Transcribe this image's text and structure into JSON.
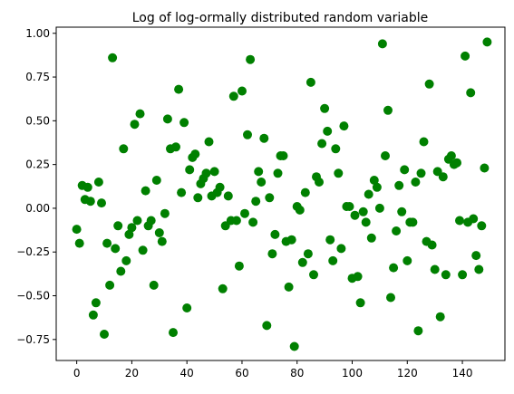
{
  "chart_data": {
    "type": "scatter",
    "title": "Log of log-ormally distributed random variable",
    "xlabel": "",
    "ylabel": "",
    "xlim": [
      -7.45,
      155.45
    ],
    "ylim": [
      -0.87,
      1.035
    ],
    "x_ticks": [
      0,
      20,
      40,
      60,
      80,
      100,
      120,
      140
    ],
    "y_ticks": [
      -0.75,
      -0.5,
      -0.25,
      0.0,
      0.25,
      0.5,
      0.75,
      1.0
    ],
    "x_tick_labels": [
      "0",
      "20",
      "40",
      "60",
      "80",
      "100",
      "120",
      "140"
    ],
    "y_tick_labels": [
      "−0.75",
      "−0.50",
      "−0.25",
      "0.00",
      "0.25",
      "0.50",
      "0.75",
      "1.00"
    ],
    "grid": false,
    "legend": "none",
    "marker_color": "#008000",
    "series": [
      {
        "x": [
          0,
          1,
          2,
          3,
          4,
          5,
          6,
          7,
          8,
          9,
          10,
          11,
          12,
          13,
          14,
          15,
          16,
          17,
          18,
          19,
          20,
          21,
          22,
          23,
          24,
          25,
          26,
          27,
          28,
          29,
          30,
          31,
          32,
          33,
          34,
          35,
          36,
          37,
          38,
          39,
          40,
          41,
          42,
          43,
          44,
          45,
          46,
          47,
          48,
          49,
          50,
          51,
          52,
          53,
          54,
          55,
          56,
          57,
          58,
          59,
          60,
          61,
          62,
          63,
          64,
          65,
          66,
          67,
          68,
          69,
          70,
          71,
          72,
          73,
          74,
          75,
          76,
          77,
          78,
          79,
          80,
          81,
          82,
          83,
          84,
          85,
          86,
          87,
          88,
          89,
          90,
          91,
          92,
          93,
          94,
          95,
          96,
          97,
          98,
          99,
          100,
          101,
          102,
          103,
          104,
          105,
          106,
          107,
          108,
          109,
          110,
          111,
          112,
          113,
          114,
          115,
          116,
          117,
          118,
          119,
          120,
          121,
          122,
          123,
          124,
          125,
          126,
          127,
          128,
          129,
          130,
          131,
          132,
          133,
          134,
          135,
          136,
          137,
          138,
          139,
          140,
          141,
          142,
          143,
          144,
          145,
          146,
          147,
          148,
          149
        ],
        "y": [
          -0.12,
          -0.2,
          0.13,
          0.05,
          0.12,
          0.04,
          -0.61,
          -0.54,
          0.15,
          0.03,
          -0.72,
          -0.2,
          -0.44,
          0.86,
          -0.23,
          -0.1,
          -0.36,
          0.34,
          -0.3,
          -0.15,
          -0.11,
          0.48,
          -0.07,
          0.54,
          -0.24,
          0.1,
          -0.1,
          -0.07,
          -0.44,
          0.16,
          -0.14,
          -0.19,
          -0.03,
          0.51,
          0.34,
          -0.71,
          0.35,
          0.68,
          0.09,
          0.49,
          -0.57,
          0.22,
          0.29,
          0.31,
          0.06,
          0.14,
          0.17,
          0.2,
          0.38,
          0.07,
          0.21,
          0.09,
          0.12,
          -0.46,
          -0.1,
          0.07,
          -0.07,
          0.64,
          -0.07,
          -0.33,
          0.67,
          -0.03,
          0.42,
          0.85,
          -0.08,
          0.04,
          0.21,
          0.15,
          0.4,
          -0.67,
          0.06,
          -0.26,
          -0.15,
          0.2,
          0.3,
          0.3,
          -0.19,
          -0.45,
          -0.18,
          -0.79,
          0.01,
          -0.01,
          -0.31,
          0.09,
          -0.26,
          0.72,
          -0.38,
          0.18,
          0.15,
          0.37,
          0.57,
          0.44,
          -0.18,
          -0.3,
          0.34,
          0.2,
          -0.23,
          0.47,
          0.01,
          0.01,
          -0.4,
          -0.04,
          -0.39,
          -0.54,
          -0.02,
          -0.08,
          0.08,
          -0.17,
          0.16,
          0.12,
          0.0,
          0.94,
          0.3,
          0.56,
          -0.51,
          -0.34,
          -0.13,
          0.13,
          -0.02,
          0.22,
          -0.3,
          -0.08,
          -0.08,
          0.15,
          -0.7,
          0.2,
          0.38,
          -0.19,
          0.71,
          -0.21,
          -0.35,
          0.21,
          -0.62,
          0.18,
          -0.38,
          0.28,
          0.3,
          0.25,
          0.26,
          -0.07,
          -0.38,
          0.87,
          -0.08,
          0.66,
          -0.06,
          -0.27,
          -0.35,
          -0.1,
          0.23,
          0.95
        ]
      }
    ]
  }
}
